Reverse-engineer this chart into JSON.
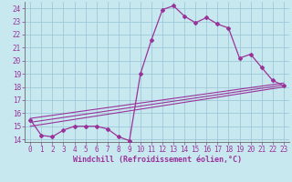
{
  "xlabel": "Windchill (Refroidissement éolien,°C)",
  "xlim": [
    -0.5,
    23.5
  ],
  "ylim": [
    13.8,
    24.5
  ],
  "xticks": [
    0,
    1,
    2,
    3,
    4,
    5,
    6,
    7,
    8,
    9,
    10,
    11,
    12,
    13,
    14,
    15,
    16,
    17,
    18,
    19,
    20,
    21,
    22,
    23
  ],
  "yticks": [
    14,
    15,
    16,
    17,
    18,
    19,
    20,
    21,
    22,
    23,
    24
  ],
  "bg_color": "#c8e8f0",
  "grid_color": "#a0c8d8",
  "line_color": "#993399",
  "main_x": [
    0,
    1,
    2,
    3,
    4,
    5,
    6,
    7,
    8,
    9,
    10,
    11,
    12,
    13,
    14,
    15,
    16,
    17,
    18,
    19,
    20,
    21,
    22,
    23
  ],
  "main_y": [
    15.5,
    14.3,
    14.2,
    14.7,
    15.0,
    15.0,
    15.0,
    14.8,
    14.2,
    13.9,
    19.0,
    21.6,
    23.9,
    24.2,
    23.4,
    22.9,
    23.3,
    22.8,
    22.5,
    20.2,
    20.5,
    19.5,
    18.5,
    18.1
  ],
  "line2_x": [
    0,
    23
  ],
  "line2_y": [
    15.0,
    18.0
  ],
  "line3_x": [
    0,
    23
  ],
  "line3_y": [
    15.3,
    18.15
  ],
  "line4_x": [
    0,
    23
  ],
  "line4_y": [
    15.6,
    18.3
  ],
  "tick_fontsize": 5.5,
  "label_fontsize": 6.0
}
